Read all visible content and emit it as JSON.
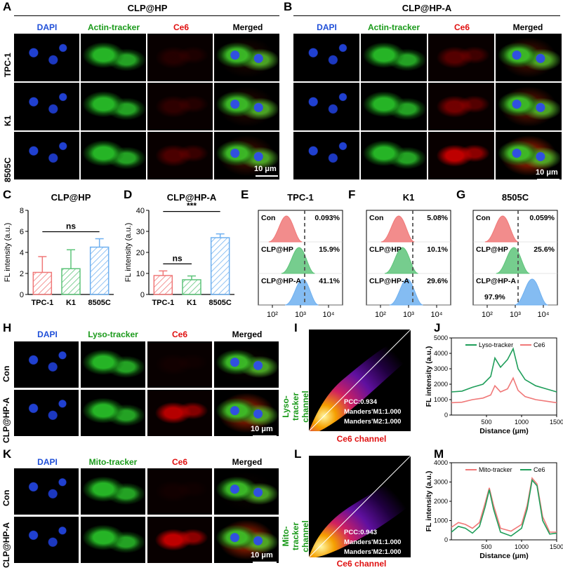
{
  "panels": {
    "A": "A",
    "B": "B",
    "C": "C",
    "D": "D",
    "E": "E",
    "F": "F",
    "G": "G",
    "H": "H",
    "I": "I",
    "J": "J",
    "K": "K",
    "L": "L",
    "M": "M"
  },
  "A": {
    "title": "CLP@HP",
    "channels": [
      "DAPI",
      "Actin-tracker",
      "Ce6",
      "Merged"
    ],
    "rows": [
      "TPC-1",
      "K1",
      "8505C"
    ],
    "scale": "10 μm"
  },
  "B": {
    "title": "CLP@HP-A",
    "channels": [
      "DAPI",
      "Actin-tracker",
      "Ce6",
      "Merged"
    ],
    "scale": "10 μm"
  },
  "H": {
    "channels": [
      "DAPI",
      "Lyso-tracker",
      "Ce6",
      "Merged"
    ],
    "rows": [
      "Con",
      "CLP@HP-A"
    ],
    "scale": "10 μm"
  },
  "K": {
    "channels": [
      "DAPI",
      "Mito-tracker",
      "Ce6",
      "Merged"
    ],
    "rows": [
      "Con",
      "CLP@HP-A"
    ],
    "scale": "10 μm"
  },
  "I": {
    "ylabel": "Lyso-tracker channel",
    "xlabel": "Ce6 channel",
    "stats": [
      "PCC:0.934",
      "Manders'M1:1.000",
      "Manders'M2:1.000"
    ]
  },
  "L": {
    "ylabel": "Mito-tracker channel",
    "xlabel": "Ce6 channel",
    "stats": [
      "PCC:0.943",
      "Manders'M1:1.000",
      "Manders'M2:1.000"
    ]
  },
  "colors": {
    "dapi": "#1f4fd8",
    "green": "#1a9a1a",
    "red": "#e01010",
    "pink": "#f07878",
    "lightgreen": "#5ec47a",
    "lightblue": "#6fb0f0",
    "darkgreen": "#1f9e5a"
  },
  "chart_data": [
    {
      "id": "C",
      "type": "bar",
      "title": "CLP@HP",
      "ylabel": "FL intensity (a.u.)",
      "categories": [
        "TPC-1",
        "K1",
        "8505C"
      ],
      "values": [
        2.1,
        2.45,
        4.5
      ],
      "errors": [
        1.5,
        1.8,
        0.8
      ],
      "ylim": [
        0,
        8
      ],
      "yticks": [
        0,
        2,
        4,
        6,
        8
      ],
      "significance": [
        {
          "from": 0,
          "to": 2,
          "label": "ns"
        }
      ]
    },
    {
      "id": "D",
      "type": "bar",
      "title": "CLP@HP-A",
      "ylabel": "FL intensity (a.u.)",
      "categories": [
        "TPC-1",
        "K1",
        "8505C"
      ],
      "values": [
        9.0,
        7.0,
        27.0
      ],
      "errors": [
        2.2,
        1.8,
        1.8
      ],
      "ylim": [
        0,
        40
      ],
      "yticks": [
        0,
        10,
        20,
        30,
        40
      ],
      "significance": [
        {
          "from": 0,
          "to": 1,
          "label": "ns"
        },
        {
          "from": 0,
          "to": 2,
          "label": "***"
        }
      ]
    },
    {
      "id": "E",
      "type": "area",
      "title": "TPC-1",
      "xscale": "log",
      "xticks": [
        "10²",
        "10³",
        "10⁴"
      ],
      "series": [
        {
          "name": "Con",
          "pct": "0.093%",
          "peak": 2.5
        },
        {
          "name": "CLP@HP",
          "pct": "15.9%",
          "peak": 2.95
        },
        {
          "name": "CLP@HP-A",
          "pct": "41.1%",
          "peak": 3.08
        }
      ],
      "gate": 3.15
    },
    {
      "id": "F",
      "type": "area",
      "title": "K1",
      "xscale": "log",
      "xticks": [
        "10²",
        "10³",
        "10⁴"
      ],
      "series": [
        {
          "name": "Con",
          "pct": "5.08%",
          "peak": 2.65
        },
        {
          "name": "CLP@HP",
          "pct": "10.1%",
          "peak": 2.78
        },
        {
          "name": "CLP@HP-A",
          "pct": "29.6%",
          "peak": 2.95
        }
      ],
      "gate": 3.15
    },
    {
      "id": "G",
      "type": "area",
      "title": "8505C",
      "xscale": "log",
      "xticks": [
        "10²",
        "10³",
        "10⁴"
      ],
      "series": [
        {
          "name": "Con",
          "pct": "0.059%",
          "peak": 2.55
        },
        {
          "name": "CLP@HP",
          "pct": "25.6%",
          "peak": 2.95
        },
        {
          "name": "CLP@HP-A",
          "pct": "97.9%",
          "peak": 3.6
        }
      ],
      "gate": 3.1
    },
    {
      "id": "J",
      "type": "line",
      "xlabel": "Distance (μm)",
      "ylabel": "FL intensity (a.u.)",
      "xlim": [
        0,
        1500
      ],
      "ylim": [
        0,
        5000
      ],
      "yticks": [
        0,
        1000,
        2000,
        3000,
        4000,
        5000
      ],
      "xticks": [
        500,
        1000,
        1500
      ],
      "series": [
        {
          "name": "Lyso-tracker",
          "points": [
            [
              0,
              1500
            ],
            [
              150,
              1550
            ],
            [
              300,
              1800
            ],
            [
              450,
              2000
            ],
            [
              560,
              2500
            ],
            [
              620,
              3700
            ],
            [
              700,
              3100
            ],
            [
              800,
              3600
            ],
            [
              880,
              4300
            ],
            [
              950,
              3000
            ],
            [
              1050,
              2300
            ],
            [
              1200,
              1900
            ],
            [
              1350,
              1700
            ],
            [
              1500,
              1500
            ]
          ]
        },
        {
          "name": "Ce6",
          "points": [
            [
              0,
              800
            ],
            [
              150,
              830
            ],
            [
              300,
              1000
            ],
            [
              450,
              1100
            ],
            [
              560,
              1300
            ],
            [
              620,
              1900
            ],
            [
              700,
              1500
            ],
            [
              800,
              1700
            ],
            [
              880,
              2400
            ],
            [
              950,
              1600
            ],
            [
              1050,
              1200
            ],
            [
              1200,
              1000
            ],
            [
              1350,
              900
            ],
            [
              1500,
              800
            ]
          ]
        }
      ]
    },
    {
      "id": "M",
      "type": "line",
      "xlabel": "Distance (μm)",
      "ylabel": "FL intensity (a.u.)",
      "xlim": [
        0,
        1500
      ],
      "ylim": [
        0,
        4000
      ],
      "yticks": [
        0,
        1000,
        2000,
        3000,
        4000
      ],
      "xticks": [
        500,
        1000,
        1500
      ],
      "series": [
        {
          "name": "Mito-tracker",
          "points": [
            [
              0,
              650
            ],
            [
              100,
              900
            ],
            [
              200,
              800
            ],
            [
              300,
              600
            ],
            [
              400,
              900
            ],
            [
              480,
              1900
            ],
            [
              540,
              2700
            ],
            [
              600,
              1800
            ],
            [
              700,
              600
            ],
            [
              850,
              450
            ],
            [
              1000,
              800
            ],
            [
              1080,
              1800
            ],
            [
              1150,
              3200
            ],
            [
              1220,
              2900
            ],
            [
              1300,
              1200
            ],
            [
              1400,
              400
            ],
            [
              1500,
              400
            ]
          ]
        },
        {
          "name": "Ce6",
          "points": [
            [
              0,
              400
            ],
            [
              100,
              700
            ],
            [
              200,
              600
            ],
            [
              300,
              350
            ],
            [
              400,
              700
            ],
            [
              480,
              1700
            ],
            [
              540,
              2600
            ],
            [
              600,
              1600
            ],
            [
              700,
              400
            ],
            [
              850,
              200
            ],
            [
              1000,
              600
            ],
            [
              1080,
              1600
            ],
            [
              1150,
              3100
            ],
            [
              1220,
              2800
            ],
            [
              1300,
              1000
            ],
            [
              1400,
              300
            ],
            [
              1500,
              350
            ]
          ]
        }
      ]
    }
  ]
}
